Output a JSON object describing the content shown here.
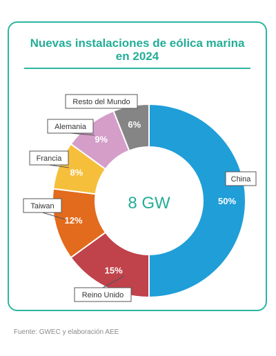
{
  "title_lines": [
    "Nuevas instalaciones de eólica marina",
    "en 2024"
  ],
  "source": "Fuente: GWEC y elaboración AEE",
  "colors": {
    "accent": "#2bb5a0",
    "title": "#23ad97",
    "center": "#23ad97"
  },
  "chart_data": {
    "type": "pie",
    "donut": true,
    "center_label": "8 GW",
    "categories": [
      "China",
      "Reino Unido",
      "Taiwan",
      "Francia",
      "Alemania",
      "Resto del Mundo"
    ],
    "values": [
      50,
      15,
      12,
      8,
      9,
      6
    ],
    "value_labels": [
      "50%",
      "15%",
      "12%",
      "8%",
      "9%",
      "6%"
    ],
    "colors": [
      "#1f9ed8",
      "#c0424a",
      "#e36b1d",
      "#f6bf3b",
      "#d49ec9",
      "#858585"
    ]
  }
}
